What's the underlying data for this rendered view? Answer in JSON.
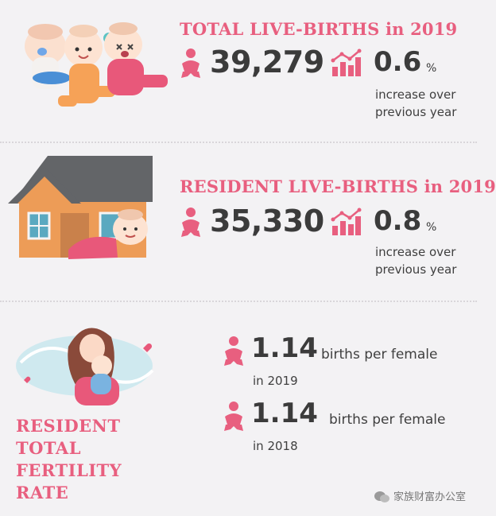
{
  "total": {
    "title": "TOTAL LIVE-BIRTHS in 2019",
    "count": "39,279",
    "change": "0.6",
    "unit": "%",
    "note_line1": "increase over",
    "note_line2": "previous year"
  },
  "resident": {
    "title": "RESIDENT LIVE-BIRTHS in 2019",
    "count": "35,330",
    "change": "0.8",
    "unit": "%",
    "note_line1": "increase over",
    "note_line2": "previous year"
  },
  "fertility": {
    "title_lines": [
      "RESIDENT",
      "TOTAL",
      "FERTILITY",
      "RATE"
    ],
    "rows": [
      {
        "value": "1.14",
        "unit": "births per female",
        "year": "in 2019"
      },
      {
        "value": "1.14",
        "unit": "births per female",
        "year": "in 2018"
      }
    ]
  },
  "watermark": "家族财富办公室",
  "colors": {
    "accent": "#e85f7f",
    "text": "#3b3b3b",
    "background": "#f3f2f4"
  },
  "icons": [
    "baby-icon",
    "growth-chart-icon",
    "wechat-icon"
  ]
}
